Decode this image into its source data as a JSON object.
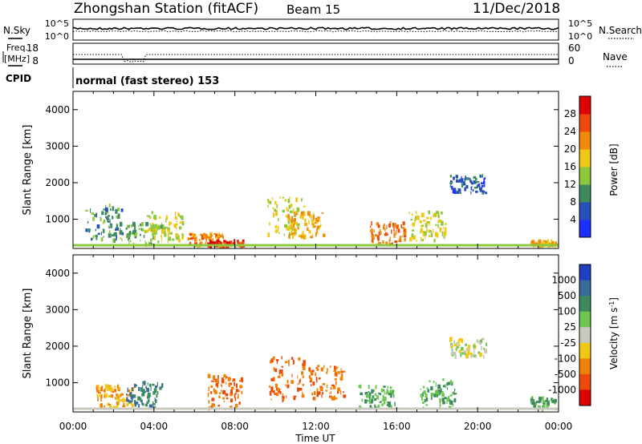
{
  "header": {
    "title": "Zhongshan Station (fitACF)",
    "beam": "Beam 15",
    "date": "11/Dec/2018"
  },
  "noise_panel": {
    "left_label": "N.Sky",
    "right_label": "N.Search",
    "left_ticks": [
      "10^5",
      "10^0"
    ],
    "right_ticks": [
      "10^5",
      "10^0"
    ]
  },
  "freq_panel": {
    "left_label_1": "Freq.",
    "left_label_2": "[MHz]",
    "right_label": "Nave",
    "left_ticks": [
      "18",
      "8"
    ],
    "right_ticks": [
      "60",
      "0"
    ]
  },
  "cpid": {
    "label": "CPID",
    "text": "normal (fast stereo) 153"
  },
  "colors": {
    "power_scale": [
      "#1e2eff",
      "#2850b8",
      "#3c8a5e",
      "#8cc83c",
      "#f0c814",
      "#f08a0a",
      "#ec4a0a",
      "#e00000"
    ],
    "velocity_scale": [
      "#2040c0",
      "#3a6a9c",
      "#3c8a5e",
      "#6cc850",
      "#c8c8be",
      "#f0c814",
      "#f0820a",
      "#ec4a0a",
      "#e00000"
    ]
  },
  "chart_data": [
    {
      "type": "heatmap",
      "name": "power",
      "ylabel": "Slant Range [km]",
      "yticks": [
        "1000",
        "2000",
        "3000",
        "4000"
      ],
      "ylim": [
        200,
        4500
      ],
      "colorbar_label": "Power [dB]",
      "colorbar_ticks": [
        "4",
        "8",
        "12",
        "16",
        "20",
        "24",
        "28"
      ],
      "colorbar_range": [
        0,
        32
      ],
      "approximate_blobs": [
        {
          "t": 1.5,
          "r": [
            400,
            1400
          ],
          "v": 10
        },
        {
          "t": 3.5,
          "r": [
            300,
            900
          ],
          "v": 12
        },
        {
          "t": 4.5,
          "r": [
            400,
            1200
          ],
          "v": 16
        },
        {
          "t": 6.5,
          "r": [
            250,
            600
          ],
          "v": 22
        },
        {
          "t": 7.5,
          "r": [
            250,
            400
          ],
          "v": 28
        },
        {
          "t": 10.5,
          "r": [
            500,
            1600
          ],
          "v": 16
        },
        {
          "t": 11.5,
          "r": [
            500,
            1200
          ],
          "v": 20
        },
        {
          "t": 15.5,
          "r": [
            300,
            900
          ],
          "v": 24
        },
        {
          "t": 17.5,
          "r": [
            400,
            1200
          ],
          "v": 16
        },
        {
          "t": 19.5,
          "r": [
            1700,
            2200
          ],
          "v": 6
        },
        {
          "t": 23.5,
          "r": [
            250,
            400
          ],
          "v": 20
        }
      ]
    },
    {
      "type": "heatmap",
      "name": "velocity",
      "xlabel": "Time UT",
      "ylabel": "Slant Range [km]",
      "xticks": [
        "00:00",
        "04:00",
        "08:00",
        "12:00",
        "16:00",
        "20:00",
        "00:00"
      ],
      "yticks": [
        "1000",
        "2000",
        "3000",
        "4000"
      ],
      "ylim": [
        200,
        4500
      ],
      "xlim": [
        0,
        24
      ],
      "colorbar_label": "Velocity [m s",
      "colorbar_label_sup": "-1",
      "colorbar_label_end": "]",
      "colorbar_ticks": [
        "1000",
        "500",
        "100",
        "25",
        "-25",
        "-100",
        "-500",
        "-1000"
      ],
      "approximate_blobs": [
        {
          "t": 2.0,
          "r": [
            300,
            900
          ],
          "v": -100
        },
        {
          "t": 3.5,
          "r": [
            300,
            1000
          ],
          "v": 500
        },
        {
          "t": 7.5,
          "r": [
            250,
            1200
          ],
          "v": -500
        },
        {
          "t": 10.5,
          "r": [
            500,
            1700
          ],
          "v": -500
        },
        {
          "t": 12.5,
          "r": [
            500,
            1500
          ],
          "v": -500
        },
        {
          "t": 15.0,
          "r": [
            300,
            900
          ],
          "v": 100
        },
        {
          "t": 18.0,
          "r": [
            300,
            1100
          ],
          "v": 100
        },
        {
          "t": 19.5,
          "r": [
            1700,
            2200
          ],
          "v": 0
        },
        {
          "t": 23.5,
          "r": [
            250,
            600
          ],
          "v": 100
        }
      ]
    }
  ]
}
